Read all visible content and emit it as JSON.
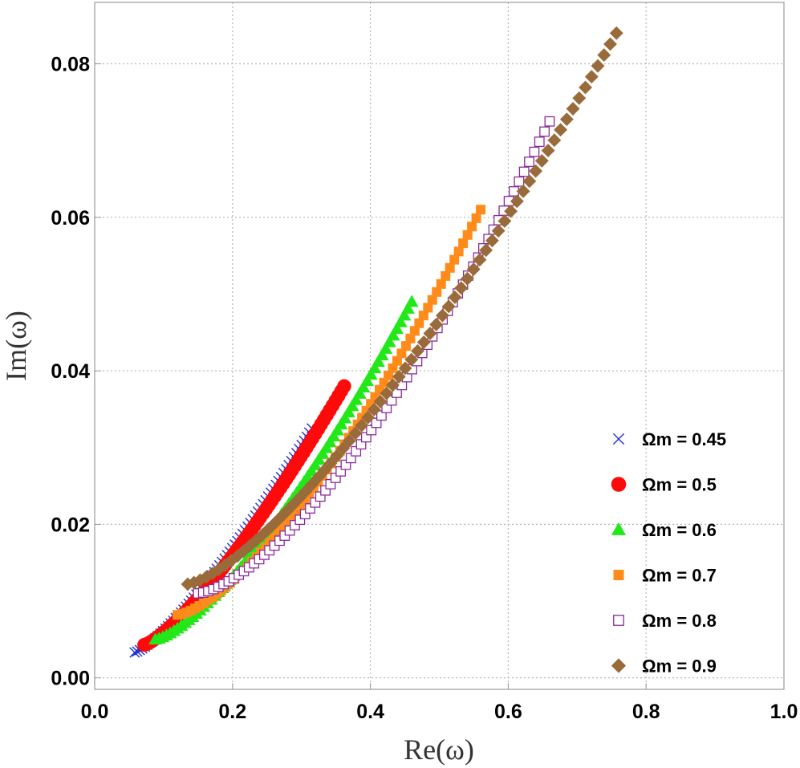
{
  "chart_data": {
    "type": "scatter",
    "title": "",
    "xlabel": "Re(ω)",
    "ylabel": "Im(ω)",
    "xlim": [
      0.0,
      1.0
    ],
    "ylim": [
      -0.0015,
      0.088
    ],
    "xticks": [
      "0.0",
      "0.2",
      "0.4",
      "0.6",
      "0.8",
      "1.0"
    ],
    "yticks": [
      "0.00",
      "0.02",
      "0.04",
      "0.06",
      "0.08"
    ],
    "grid": true,
    "legend_position": "bottom-right",
    "series": [
      {
        "name": "Ωm = 0.45",
        "marker": "x",
        "color": "#1f2fd0",
        "x0": 0.058,
        "x1": 0.315,
        "y0": 0.0033,
        "y1": 0.0325,
        "exp": 1.28
      },
      {
        "name": "Ωm = 0.5",
        "marker": "circle",
        "color": "#ff0a0a",
        "x0": 0.072,
        "x1": 0.362,
        "y0": 0.0043,
        "y1": 0.038,
        "exp": 1.3
      },
      {
        "name": "Ωm = 0.6",
        "marker": "triangle",
        "color": "#22e81a",
        "x0": 0.088,
        "x1": 0.46,
        "y0": 0.005,
        "y1": 0.049,
        "exp": 1.4
      },
      {
        "name": "Ωm = 0.7",
        "marker": "square",
        "color": "#ff8c1a",
        "x0": 0.12,
        "x1": 0.56,
        "y0": 0.0082,
        "y1": 0.061,
        "exp": 1.45
      },
      {
        "name": "Ωm = 0.8",
        "marker": "square-open",
        "color": "#8a2a9a",
        "x0": 0.15,
        "x1": 0.66,
        "y0": 0.011,
        "y1": 0.0725,
        "exp": 1.5
      },
      {
        "name": "Ωm = 0.9",
        "marker": "diamond",
        "color": "#9a6b3a",
        "x0": 0.135,
        "x1": 0.757,
        "y0": 0.0122,
        "y1": 0.084,
        "exp": 1.38
      }
    ]
  }
}
